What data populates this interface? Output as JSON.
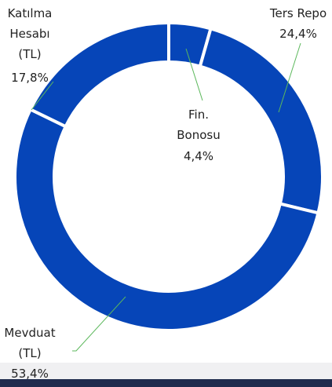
{
  "chart_data": {
    "type": "donut",
    "categories": [
      "Fin.\nBonosu",
      "Ters Repo",
      "Mevduat\n(TL)",
      "Katılma\nHesabı\n(TL)"
    ],
    "values": [
      4.4,
      24.4,
      53.4,
      17.8
    ],
    "value_labels": [
      "4,4%",
      "24,4%",
      "53,4%",
      "17,8%"
    ],
    "color": "#0645b8"
  }
}
